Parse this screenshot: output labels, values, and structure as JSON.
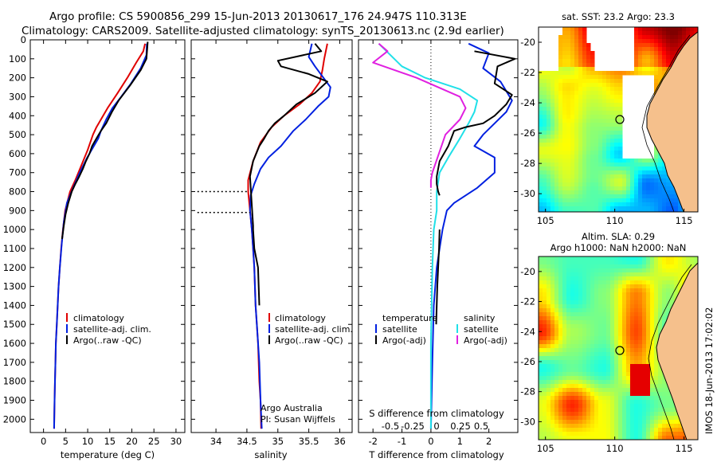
{
  "header": {
    "line1": "Argo profile: CS 5900856_299 15-Jun-2013 20130617_176 24.947S 110.313E",
    "line2": "Climatology: CARS2009. Satellite-adjusted climatology: synTS_20130613.nc (2.9d earlier)"
  },
  "colors": {
    "climatology": "#e00000",
    "satellite": "#0020e0",
    "argo": "#000000",
    "satellite_salinity_diff": "#20e0e8",
    "argo_salinity_diff": "#e020e0",
    "land": "#f5c08c",
    "coast": "#000000"
  },
  "chart_data": [
    {
      "id": "temperature",
      "type": "line",
      "xlabel": "temperature (deg C)",
      "xlim": [
        -3,
        32
      ],
      "xticks": [
        0,
        5,
        10,
        15,
        20,
        25,
        30
      ],
      "ylim": [
        2070,
        0
      ],
      "yticks": [
        0,
        100,
        200,
        300,
        400,
        500,
        600,
        700,
        800,
        900,
        1000,
        1100,
        1200,
        1300,
        1400,
        1500,
        1600,
        1700,
        1800,
        1900,
        2000
      ],
      "legend": {
        "position": "lower-center",
        "entries": [
          "climatology",
          "satellite-adj. clim.",
          "Argo(..raw -QC)"
        ]
      },
      "series": [
        {
          "name": "climatology",
          "color": "climatology",
          "x": [
            23.0,
            22.6,
            21.0,
            19.0,
            16.8,
            14.5,
            13.0,
            12.0,
            11.2,
            10.0,
            8.6,
            7.2,
            6.0,
            4.9,
            4.4,
            4.0,
            3.7,
            3.4,
            3.2,
            3.0,
            2.8,
            2.7,
            2.6,
            2.5,
            2.4
          ],
          "y": [
            20,
            60,
            120,
            200,
            280,
            360,
            420,
            460,
            500,
            580,
            660,
            740,
            800,
            900,
            1000,
            1100,
            1200,
            1300,
            1400,
            1500,
            1600,
            1700,
            1800,
            1900,
            2050
          ]
        },
        {
          "name": "satellite-adj. clim.",
          "color": "satellite",
          "x": [
            23.4,
            23.3,
            22.0,
            19.8,
            17.6,
            15.6,
            14.2,
            13.0,
            12.4,
            11.4,
            9.9,
            8.2,
            6.7,
            5.3,
            4.6,
            4.1,
            3.7,
            3.4,
            3.2,
            3.0,
            2.8,
            2.7,
            2.6,
            2.5,
            2.4
          ],
          "y": [
            20,
            80,
            150,
            230,
            300,
            360,
            420,
            480,
            520,
            560,
            620,
            700,
            780,
            860,
            960,
            1080,
            1200,
            1300,
            1400,
            1500,
            1600,
            1700,
            1800,
            1900,
            2050
          ]
        },
        {
          "name": "Argo(..raw -QC)",
          "color": "argo",
          "x": [
            23.6,
            23.5,
            23.3,
            22.0,
            19.6,
            17.0,
            15.5,
            14.2,
            13.0,
            12.0,
            11.0,
            10.4,
            9.6,
            8.9,
            8.1,
            7.2,
            6.4,
            5.6,
            5.0,
            4.6,
            4.2
          ],
          "y": [
            10,
            40,
            100,
            160,
            240,
            320,
            380,
            440,
            480,
            520,
            560,
            600,
            640,
            680,
            720,
            760,
            800,
            860,
            920,
            980,
            1050
          ]
        }
      ]
    },
    {
      "id": "salinity",
      "type": "line",
      "xlabel": "salinity",
      "xlim": [
        33.6,
        36.2
      ],
      "xticks": [
        34,
        34.5,
        35,
        35.5,
        36
      ],
      "ylim": [
        2070,
        0
      ],
      "legend": {
        "position": "lower-center",
        "entries": [
          "climatology",
          "satellite-adj. clim.",
          "Argo(..raw -QC)"
        ]
      },
      "annotation": [
        "Argo Australia",
        "PI: Susan Wijffels"
      ],
      "series": [
        {
          "name": "climatology",
          "color": "climatology",
          "x": [
            35.8,
            35.75,
            35.72,
            35.68,
            35.55,
            35.35,
            35.1,
            34.9,
            34.72,
            34.6,
            34.52,
            34.52,
            34.55,
            34.58,
            34.6,
            34.62,
            34.64,
            34.66,
            34.68,
            34.7,
            34.72,
            34.73
          ],
          "y": [
            20,
            100,
            160,
            220,
            280,
            340,
            400,
            460,
            540,
            640,
            740,
            800,
            900,
            1000,
            1100,
            1200,
            1400,
            1500,
            1600,
            1800,
            1900,
            2050
          ]
        },
        {
          "name": "satellite-adj. clim.",
          "color": "satellite",
          "x": [
            35.55,
            35.5,
            35.6,
            35.85,
            35.82,
            35.65,
            35.45,
            35.25,
            35.05,
            34.85,
            34.72,
            34.62,
            34.56,
            34.55,
            34.58,
            34.6,
            34.62,
            34.64,
            34.66,
            34.7,
            34.72,
            34.74
          ],
          "y": [
            20,
            90,
            140,
            250,
            300,
            350,
            420,
            480,
            560,
            620,
            680,
            760,
            820,
            900,
            1000,
            1100,
            1200,
            1400,
            1500,
            1700,
            1900,
            2050
          ]
        },
        {
          "name": "Argo(..raw -QC)",
          "color": "argo",
          "x": [
            35.6,
            35.7,
            35.0,
            35.05,
            35.5,
            35.8,
            35.6,
            35.3,
            35.1,
            34.95,
            34.85,
            34.78,
            34.7,
            34.6,
            34.55,
            34.6,
            34.6,
            34.62,
            34.68,
            34.7
          ],
          "y": [
            20,
            60,
            110,
            140,
            180,
            220,
            280,
            340,
            400,
            440,
            480,
            520,
            560,
            640,
            720,
            980,
            1000,
            1100,
            1200,
            1400
          ]
        }
      ],
      "dotted_segments": [
        {
          "x": [
            33.7,
            34.5
          ],
          "y": [
            800,
            800
          ]
        },
        {
          "x": [
            33.7,
            34.55
          ],
          "y": [
            910,
            910
          ]
        }
      ]
    },
    {
      "id": "differences",
      "type": "line",
      "xlabel": "T difference from climatology",
      "xlim": [
        -2.5,
        3.0
      ],
      "xticks": [
        -2,
        -1,
        0,
        1,
        2
      ],
      "top_xlabel": "S difference from climatology",
      "top_xticks": [
        "-0.5",
        "-0.25",
        "0",
        "0.25",
        "0.5"
      ],
      "ylim": [
        2070,
        0
      ],
      "legend": {
        "position": "lower-center",
        "entries": [
          "temperature",
          "satellite",
          "Argo(-adj)",
          "salinity",
          "satellite",
          "Argo(-adj)"
        ]
      },
      "series": [
        {
          "name": "satellite",
          "color": "satellite",
          "x": [
            1.3,
            2.0,
            1.8,
            2.4,
            2.8,
            2.6,
            2.2,
            1.8,
            1.5,
            2.2,
            2.2,
            1.6,
            0.8,
            0.55,
            0.4,
            0.3,
            0.2,
            0.1,
            0.05,
            0.0
          ],
          "y": [
            20,
            70,
            150,
            220,
            320,
            380,
            440,
            500,
            560,
            620,
            700,
            780,
            860,
            900,
            1000,
            1100,
            1200,
            1400,
            1700,
            2050
          ]
        },
        {
          "name": "satellite",
          "color": "satellite_salinity_diff",
          "x": [
            -1.8,
            -1.4,
            -1.0,
            -0.2,
            1.0,
            1.6,
            1.5,
            1.3,
            1.0,
            0.6,
            0.3,
            0.2,
            0.2,
            0.1,
            0.05,
            0.0,
            0.0
          ],
          "y": [
            20,
            80,
            140,
            200,
            260,
            320,
            380,
            440,
            520,
            620,
            700,
            800,
            900,
            1000,
            1200,
            1600,
            2050
          ]
        },
        {
          "name": "Argo(-adj)",
          "color": "argo_salinity_diff",
          "x": [
            -1.8,
            -1.5,
            -2.0,
            -0.5,
            1.0,
            1.2,
            1.0,
            0.5,
            0.05,
            0.0,
            0.0
          ],
          "y": [
            20,
            60,
            120,
            200,
            300,
            360,
            420,
            500,
            700,
            740,
            780
          ]
        },
        {
          "name": "Argo(-adj)",
          "color": "argo",
          "x": [
            1.5,
            2.9,
            2.3,
            2.2,
            2.8,
            2.6,
            2.2,
            1.8,
            1.2,
            0.8,
            0.6,
            0.3,
            0.2,
            0.2,
            0.25,
            0.3
          ],
          "y": [
            60,
            100,
            140,
            230,
            290,
            340,
            400,
            440,
            460,
            480,
            560,
            640,
            720,
            760,
            800,
            820
          ]
        },
        {
          "name": "Argo(-adj)",
          "color": "argo",
          "x": [
            0.3,
            0.28,
            0.25,
            0.22,
            0.2,
            0.18
          ],
          "y": [
            1000,
            1100,
            1200,
            1300,
            1400,
            1500
          ]
        }
      ]
    },
    {
      "id": "sst_map",
      "type": "heatmap",
      "title": "sat. SST: 23.2  Argo: 23.3",
      "xticks": [
        105,
        110,
        115
      ],
      "yticks": [
        -20,
        -22,
        -24,
        -26,
        -28,
        -30
      ],
      "xlim": [
        104.5,
        116
      ],
      "ylim": [
        -31.2,
        -19
      ]
    },
    {
      "id": "sla_map",
      "type": "heatmap",
      "title": "Altim. SLA: 0.29",
      "subtitle": "Argo h1000: NaN  h2000: NaN",
      "xticks": [
        105,
        110,
        115
      ],
      "yticks": [
        -20,
        -22,
        -24,
        -26,
        -28,
        -30
      ],
      "xlim": [
        104.5,
        116
      ],
      "ylim": [
        -31.2,
        -19
      ]
    }
  ],
  "watermark": "IMOS 18-Jun-2013 17:02:02"
}
